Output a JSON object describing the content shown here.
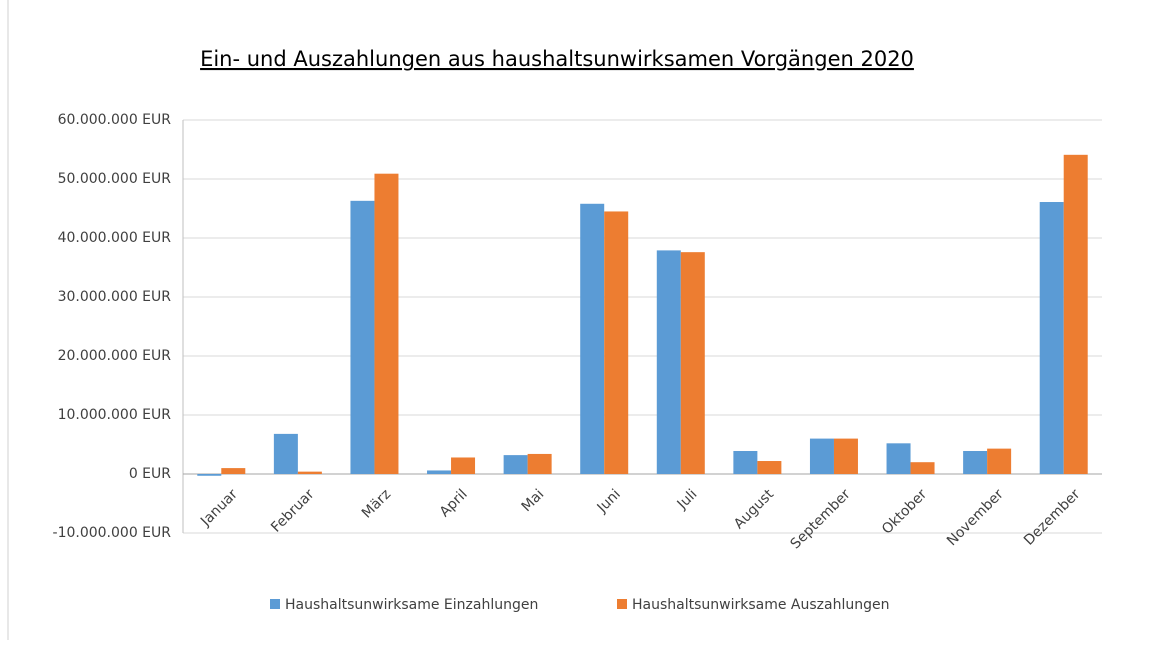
{
  "chart_data": {
    "type": "bar",
    "title": "Ein- und Auszahlungen aus haushaltsunwirksamen Vorgängen 2020",
    "categories": [
      "Januar",
      "Februar",
      "März",
      "April",
      "Mai",
      "Juni",
      "Juli",
      "August",
      "September",
      "Oktober",
      "November",
      "Dezember"
    ],
    "series": [
      {
        "name": "Haushaltsunwirksame Einzahlungen",
        "color": "#5b9bd5",
        "values": [
          -300000,
          6800000,
          46300000,
          600000,
          3200000,
          45800000,
          37900000,
          3900000,
          6000000,
          5200000,
          3900000,
          46100000
        ]
      },
      {
        "name": "Haushaltsunwirksame Auszahlungen",
        "color": "#ed7d31",
        "values": [
          1000000,
          400000,
          50900000,
          2800000,
          3400000,
          44500000,
          37600000,
          2200000,
          6000000,
          2000000,
          4300000,
          54100000
        ]
      }
    ],
    "ylim": [
      -10000000,
      60000000
    ],
    "yticks": [
      {
        "value": -10000000,
        "label": "-10.000.000 EUR"
      },
      {
        "value": 0,
        "label": "0 EUR"
      },
      {
        "value": 10000000,
        "label": "10.000.000 EUR"
      },
      {
        "value": 20000000,
        "label": "20.000.000 EUR"
      },
      {
        "value": 30000000,
        "label": "30.000.000 EUR"
      },
      {
        "value": 40000000,
        "label": "40.000.000 EUR"
      },
      {
        "value": 50000000,
        "label": "50.000.000 EUR"
      },
      {
        "value": 60000000,
        "label": "60.000.000 EUR"
      }
    ],
    "grid": true,
    "legend": "bottom"
  }
}
